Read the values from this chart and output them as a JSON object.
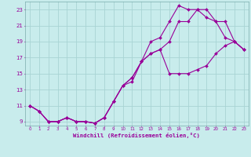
{
  "xlabel": "Windchill (Refroidissement éolien,°C)",
  "bg_color": "#c8ecec",
  "grid_color": "#a8d4d4",
  "line_color": "#990099",
  "spine_color": "#7aacac",
  "xlim": [
    -0.5,
    23.5
  ],
  "ylim": [
    8.5,
    24.0
  ],
  "xticks": [
    0,
    1,
    2,
    3,
    4,
    5,
    6,
    7,
    8,
    9,
    10,
    11,
    12,
    13,
    14,
    15,
    16,
    17,
    18,
    19,
    20,
    21,
    22,
    23
  ],
  "yticks": [
    9,
    11,
    13,
    15,
    17,
    19,
    21,
    23
  ],
  "line1_x": [
    0,
    1,
    2,
    3,
    4,
    5,
    6,
    7,
    8,
    9,
    10,
    11,
    12,
    13,
    14,
    15,
    16,
    17,
    18,
    19,
    20,
    21,
    22,
    23
  ],
  "line1_y": [
    11,
    10.3,
    9.0,
    9.0,
    9.5,
    9.0,
    9.0,
    8.8,
    9.5,
    11.5,
    13.5,
    14.0,
    16.5,
    17.5,
    18.0,
    19.0,
    21.5,
    21.5,
    23.0,
    23.0,
    21.5,
    21.5,
    19.0,
    18.0
  ],
  "line2_x": [
    0,
    1,
    2,
    3,
    4,
    5,
    6,
    7,
    8,
    9,
    10,
    11,
    12,
    13,
    14,
    15,
    16,
    17,
    18,
    19,
    20,
    21,
    22,
    23
  ],
  "line2_y": [
    11,
    10.3,
    9.0,
    9.0,
    9.5,
    9.0,
    9.0,
    8.8,
    9.5,
    11.5,
    13.5,
    14.5,
    16.5,
    19.0,
    19.5,
    21.5,
    23.5,
    23.0,
    23.0,
    22.0,
    21.5,
    19.5,
    19.0,
    18.0
  ],
  "line3_x": [
    0,
    1,
    2,
    3,
    4,
    5,
    6,
    7,
    8,
    9,
    10,
    11,
    12,
    13,
    14,
    15,
    16,
    17,
    18,
    19,
    20,
    21,
    22,
    23
  ],
  "line3_y": [
    11,
    10.3,
    9.0,
    9.0,
    9.5,
    9.0,
    9.0,
    8.8,
    9.5,
    11.5,
    13.5,
    14.5,
    16.5,
    17.5,
    18.0,
    15.0,
    15.0,
    15.0,
    15.5,
    16.0,
    17.5,
    18.5,
    19.0,
    18.0
  ]
}
